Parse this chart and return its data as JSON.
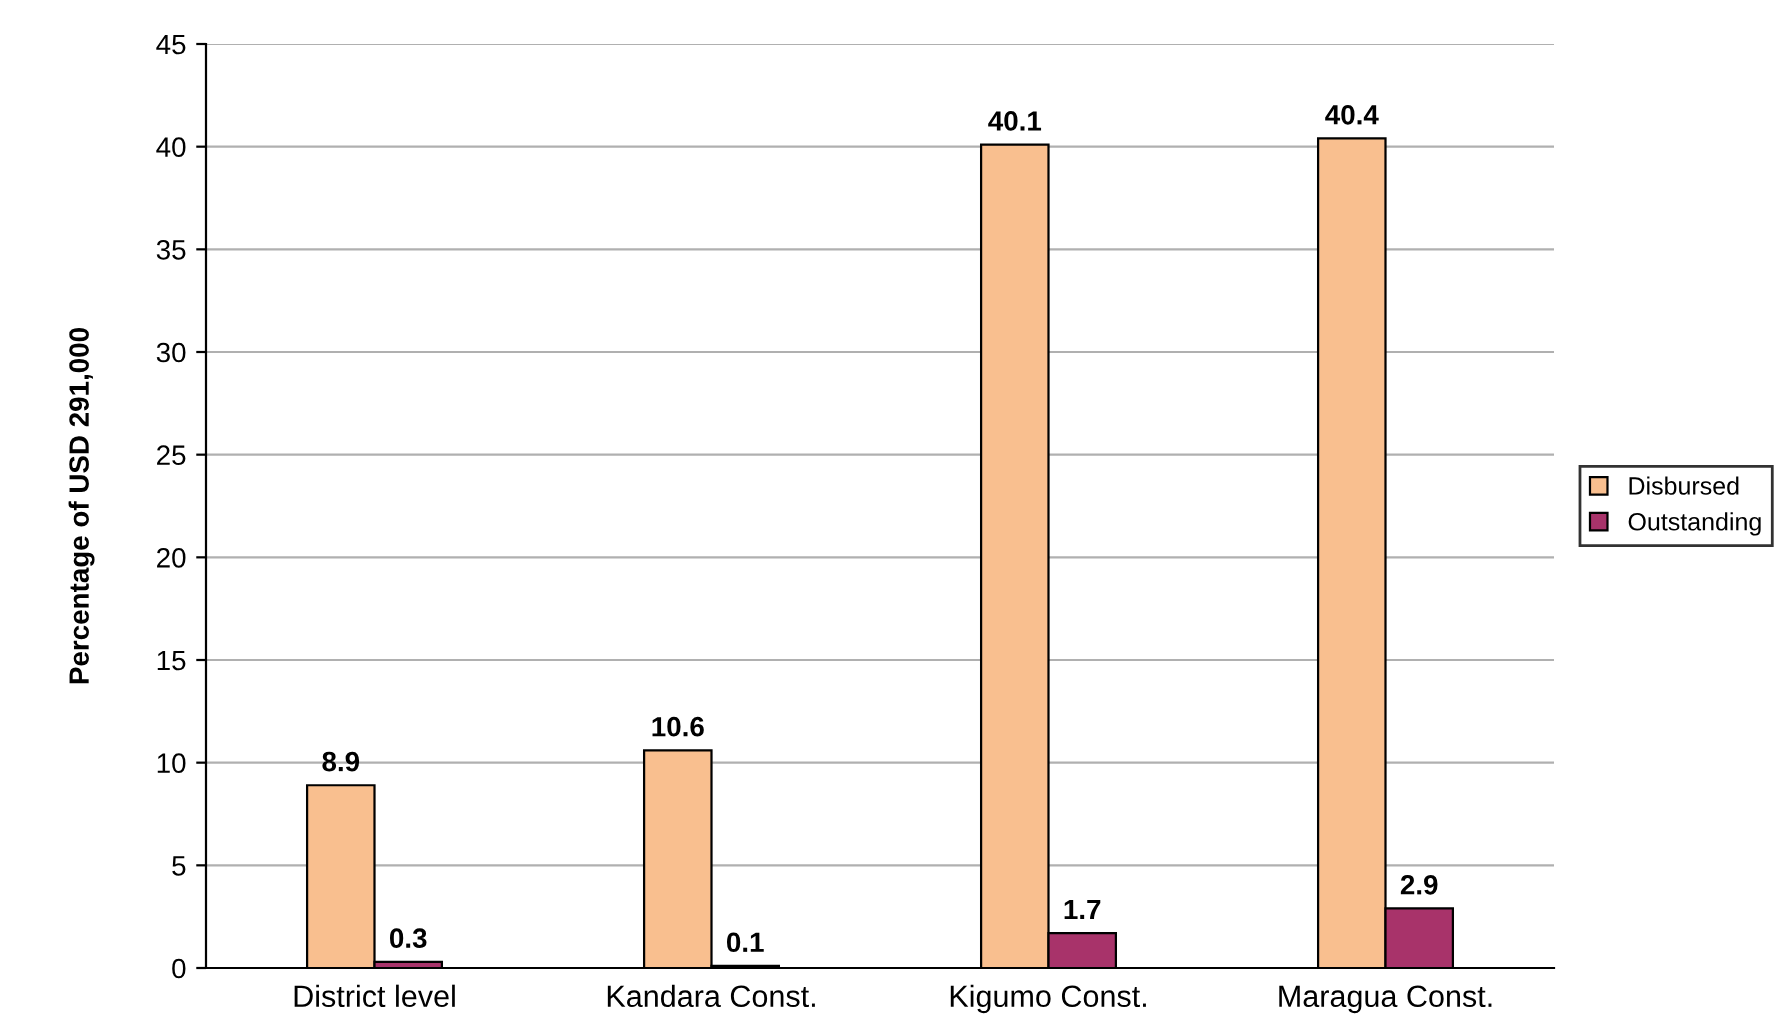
{
  "chart_data": {
    "type": "bar",
    "ylabel": "Percentage of USD 291,000",
    "categories": [
      "District level",
      "Kandara Const.",
      "Kigumo Const.",
      "Maragua Const."
    ],
    "series": [
      {
        "name": "Disbursed",
        "color": "#f9bf8f",
        "values": [
          8.9,
          10.6,
          40.1,
          40.4
        ]
      },
      {
        "name": "Outstanding",
        "color": "#a8336a",
        "values": [
          0.3,
          0.1,
          1.7,
          2.9
        ]
      }
    ],
    "ylim": [
      0,
      45
    ],
    "yticks": [
      0,
      5,
      10,
      15,
      20,
      25,
      30,
      35,
      40,
      45
    ],
    "grid": "y",
    "legend": "right",
    "data_labels": true
  }
}
